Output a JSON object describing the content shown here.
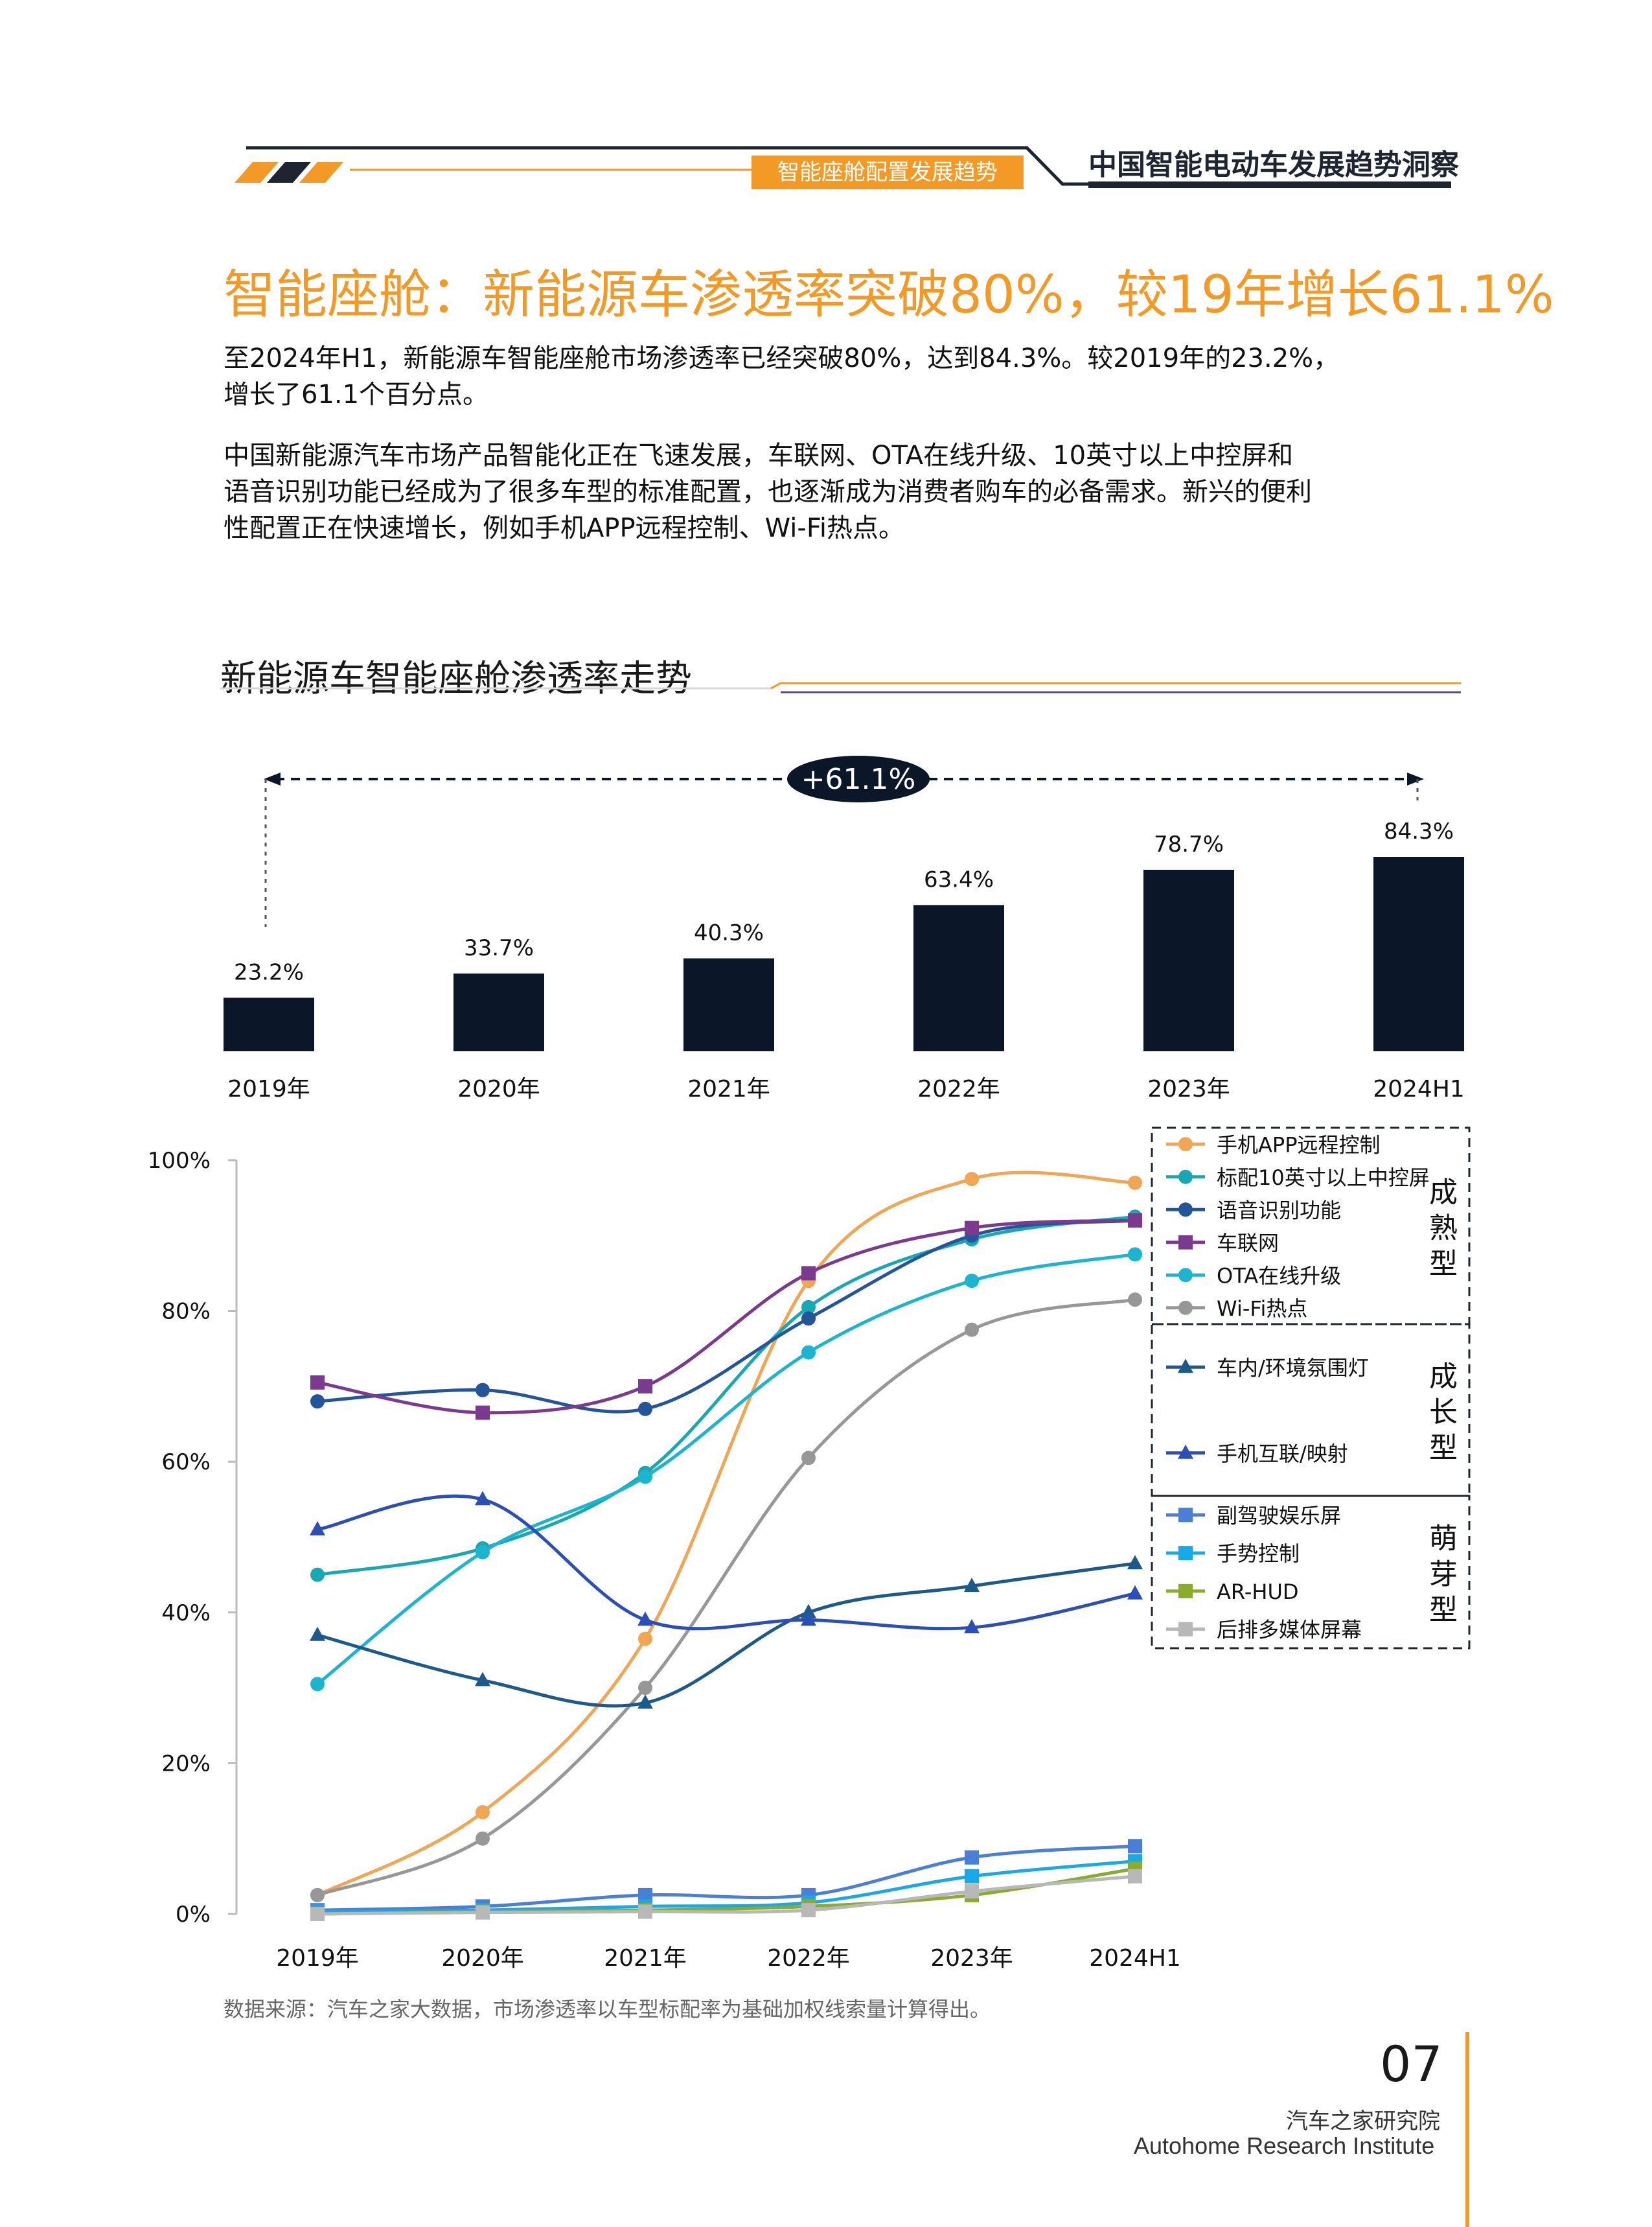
{
  "header": {
    "section": "智能座舱配置发展趋势",
    "brand": "中国智能电动车发展趋势洞察"
  },
  "title": "智能座舱：新能源车渗透率突破80%，较19年增长61.1%",
  "paragraph1": [
    "至2024年H1，新能源车智能座舱市场渗透率已经突破80%，达到84.3%。较2019年的23.2%，",
    "增长了61.1个百分点。"
  ],
  "paragraph2": [
    "中国新能源汽车市场产品智能化正在飞速发展，车联网、OTA在线升级、10英寸以上中控屏和",
    "语音识别功能已经成为了很多车型的标准配置，也逐渐成为消费者购车的必备需求。新兴的便利",
    "性配置正在快速增长，例如手机APP远程控制、Wi-Fi热点。"
  ],
  "chart_subtitle": "新能源车智能座舱渗透率走势",
  "colors": {
    "accent": "#f39a26",
    "navy": "#0b1628",
    "bar": "#0b1628"
  },
  "chart_data": [
    {
      "type": "bar",
      "categories": [
        "2019年",
        "2020年",
        "2021年",
        "2022年",
        "2023年",
        "2024H1"
      ],
      "values": [
        23.2,
        33.7,
        40.3,
        63.4,
        78.7,
        84.3
      ],
      "value_labels": [
        "23.2%",
        "33.7%",
        "40.3%",
        "63.4%",
        "78.7%",
        "84.3%"
      ],
      "annotation": "+61.1%",
      "ylim": [
        0,
        100
      ]
    },
    {
      "type": "line",
      "categories": [
        "2019年",
        "2020年",
        "2021年",
        "2022年",
        "2023年",
        "2024H1"
      ],
      "y_ticks": [
        "100%",
        "80%",
        "60%",
        "40%",
        "20%",
        "0%"
      ],
      "ylim": [
        0,
        100
      ],
      "legend_groups": [
        {
          "label": [
            "成",
            "熟",
            "型"
          ],
          "count": 6
        },
        {
          "label": [
            "成",
            "长",
            "型"
          ],
          "count": 2
        },
        {
          "label": [
            "萌",
            "芽",
            "型"
          ],
          "count": 4
        }
      ],
      "series": [
        {
          "name": "手机APP远程控制",
          "color": "#f0a652",
          "marker": "circle",
          "values": [
            2.5,
            13.5,
            36.5,
            84.0,
            97.5,
            97.0
          ]
        },
        {
          "name": "标配10英寸以上中控屏",
          "color": "#17a8b3",
          "marker": "circle",
          "values": [
            45.0,
            48.5,
            58.5,
            80.5,
            89.5,
            92.5
          ]
        },
        {
          "name": "语音识别功能",
          "color": "#24559b",
          "marker": "circle",
          "values": [
            68.0,
            69.5,
            67.0,
            79.0,
            90.0,
            92.0
          ]
        },
        {
          "name": "车联网",
          "color": "#7b3a8f",
          "marker": "square",
          "values": [
            70.5,
            66.5,
            70.0,
            85.0,
            91.0,
            92.0
          ]
        },
        {
          "name": "OTA在线升级",
          "color": "#1bb5cf",
          "marker": "circle",
          "values": [
            30.5,
            48.0,
            58.0,
            74.5,
            84.0,
            87.5
          ]
        },
        {
          "name": "Wi-Fi热点",
          "color": "#979797",
          "marker": "circle",
          "values": [
            2.5,
            10.0,
            30.0,
            60.5,
            77.5,
            81.5
          ]
        },
        {
          "name": "车内/环境氛围灯",
          "color": "#1d5a8c",
          "marker": "triangle",
          "values": [
            37.0,
            31.0,
            28.0,
            40.0,
            43.5,
            46.5
          ]
        },
        {
          "name": "手机互联/映射",
          "color": "#2b4fb6",
          "marker": "triangle",
          "values": [
            51.0,
            55.0,
            39.0,
            39.0,
            38.0,
            42.5
          ]
        },
        {
          "name": "副驾驶娱乐屏",
          "color": "#4a7fd8",
          "marker": "square",
          "values": [
            0.5,
            1.0,
            2.5,
            2.5,
            7.5,
            9.0
          ]
        },
        {
          "name": "手势控制",
          "color": "#19a9e8",
          "marker": "square",
          "values": [
            0.3,
            0.5,
            1.0,
            1.5,
            5.0,
            7.0
          ]
        },
        {
          "name": "AR-HUD",
          "color": "#8aab2e",
          "marker": "square",
          "values": [
            0.0,
            0.3,
            0.5,
            1.0,
            2.5,
            6.0
          ]
        },
        {
          "name": "后排多媒体屏幕",
          "color": "#b8b8b8",
          "marker": "square",
          "values": [
            0.0,
            0.2,
            0.3,
            0.5,
            3.0,
            5.0
          ]
        }
      ]
    }
  ],
  "source": "数据来源：汽车之家大数据，市场渗透率以车型标配率为基础加权线索量计算得出。",
  "page_number": "07",
  "org_cn": "汽车之家研究院",
  "org_en": "Autohome Research Institute"
}
